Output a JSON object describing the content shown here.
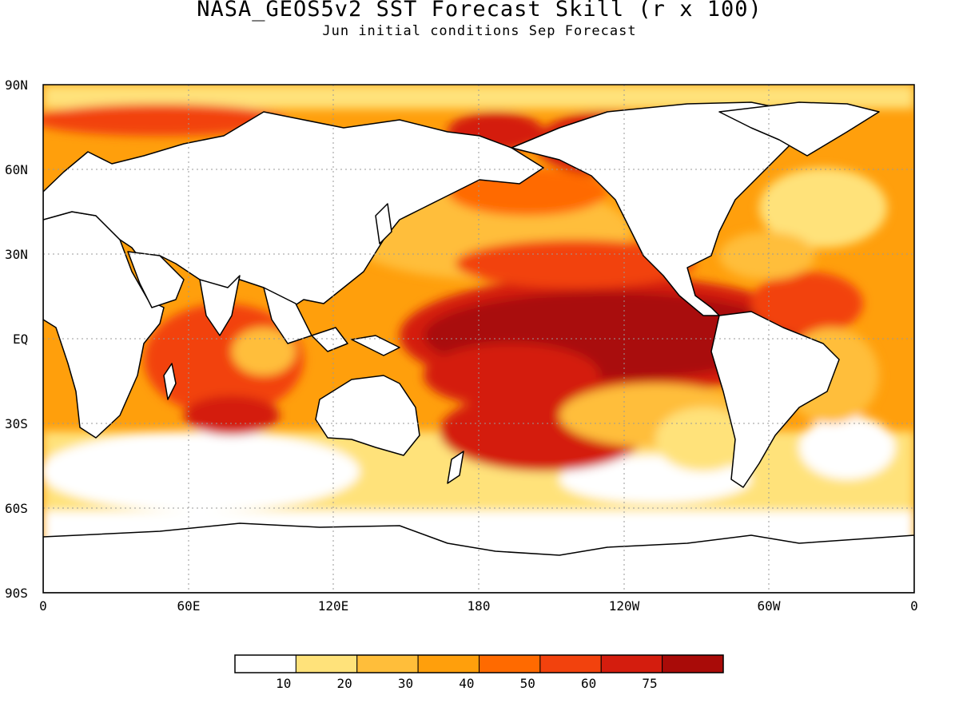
{
  "title": "NASA_GEOS5v2 SST Forecast Skill (r x 100)",
  "subtitle": "Jun initial conditions  Sep Forecast",
  "axes": {
    "y_ticks": [
      "90N",
      "60N",
      "30N",
      "EQ",
      "30S",
      "60S",
      "90S"
    ],
    "x_ticks": [
      "0",
      "60E",
      "120E",
      "180",
      "120W",
      "60W",
      "0"
    ]
  },
  "colorbar": {
    "colors": [
      "#ffffff",
      "#ffe27a",
      "#ffbe3a",
      "#ff9f0c",
      "#ff6a00",
      "#f2420d",
      "#d41d0e",
      "#a90b08"
    ],
    "labels": [
      "10",
      "20",
      "30",
      "40",
      "50",
      "60",
      "75"
    ]
  }
}
